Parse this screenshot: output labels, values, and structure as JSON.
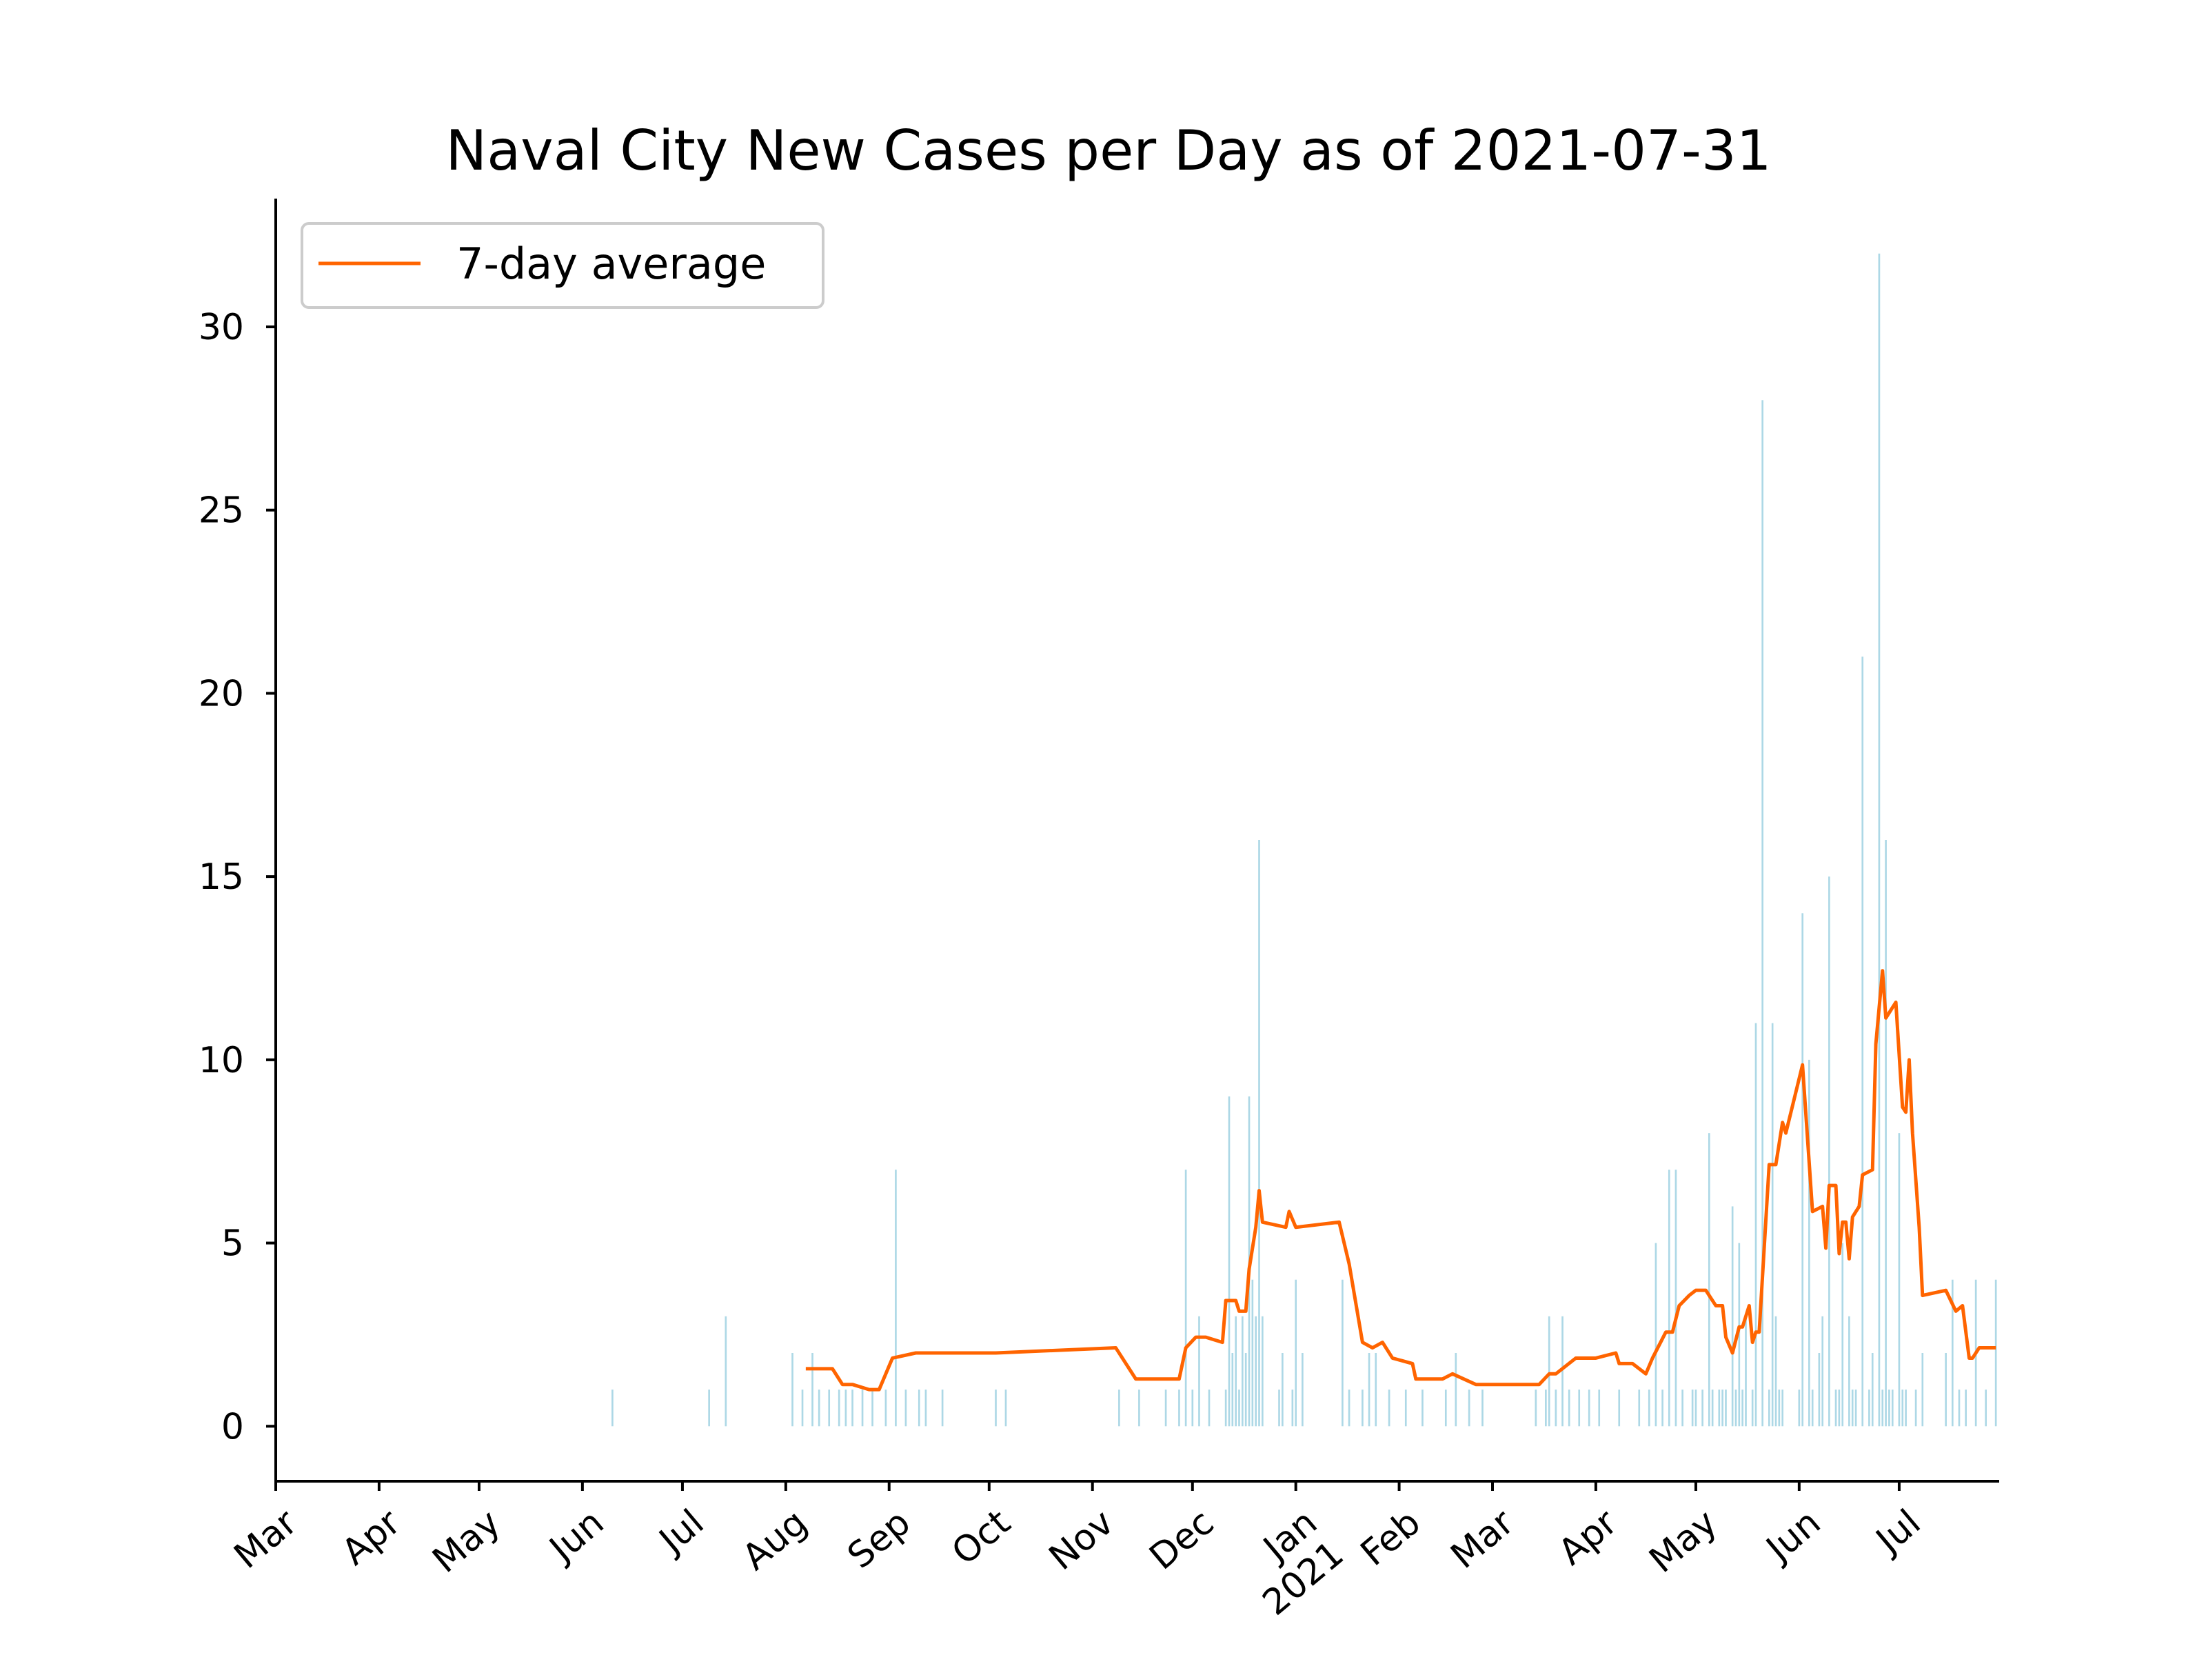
{
  "chart_data": {
    "type": "bar+line",
    "title": "Naval City New Cases per Day as of 2021-07-31",
    "xlabel": "",
    "ylabel": "",
    "ylim": [
      -1.5,
      33.5
    ],
    "xlim": [
      "2020-03-01",
      "2021-07-31"
    ],
    "y_ticks": [
      0,
      5,
      10,
      15,
      20,
      25,
      30
    ],
    "x_ticks": [
      {
        "date": "2020-03-01",
        "label": "Mar"
      },
      {
        "date": "2020-04-01",
        "label": "Apr"
      },
      {
        "date": "2020-05-01",
        "label": "May"
      },
      {
        "date": "2020-06-01",
        "label": "Jun"
      },
      {
        "date": "2020-07-01",
        "label": "Jul"
      },
      {
        "date": "2020-08-01",
        "label": "Aug"
      },
      {
        "date": "2020-09-01",
        "label": "Sep"
      },
      {
        "date": "2020-10-01",
        "label": "Oct"
      },
      {
        "date": "2020-11-01",
        "label": "Nov"
      },
      {
        "date": "2020-12-01",
        "label": "Dec"
      },
      {
        "date": "2021-01-01",
        "label": "Jan\n2021"
      },
      {
        "date": "2021-02-01",
        "label": "Feb"
      },
      {
        "date": "2021-03-01",
        "label": "Mar"
      },
      {
        "date": "2021-04-01",
        "label": "Apr"
      },
      {
        "date": "2021-05-01",
        "label": "May"
      },
      {
        "date": "2021-06-01",
        "label": "Jun"
      },
      {
        "date": "2021-07-01",
        "label": "Jul"
      }
    ],
    "legend": {
      "placement": "top-left",
      "entries": [
        {
          "label": "7-day average",
          "color": "#ff6400"
        }
      ]
    },
    "grid": false,
    "series": [
      {
        "kind": "bar",
        "color": "#add8e6",
        "points": [
          [
            "2020-06-10",
            1
          ],
          [
            "2020-07-09",
            1
          ],
          [
            "2020-07-14",
            3
          ],
          [
            "2020-08-03",
            2
          ],
          [
            "2020-08-06",
            1
          ],
          [
            "2020-08-09",
            2
          ],
          [
            "2020-08-11",
            1
          ],
          [
            "2020-08-14",
            1
          ],
          [
            "2020-08-17",
            1
          ],
          [
            "2020-08-19",
            1
          ],
          [
            "2020-08-21",
            1
          ],
          [
            "2020-08-24",
            1
          ],
          [
            "2020-08-27",
            1
          ],
          [
            "2020-08-31",
            1
          ],
          [
            "2020-09-03",
            7
          ],
          [
            "2020-09-06",
            1
          ],
          [
            "2020-09-10",
            1
          ],
          [
            "2020-09-12",
            1
          ],
          [
            "2020-09-17",
            1
          ],
          [
            "2020-10-03",
            1
          ],
          [
            "2020-10-06",
            1
          ],
          [
            "2020-11-09",
            1
          ],
          [
            "2020-11-15",
            1
          ],
          [
            "2020-11-23",
            1
          ],
          [
            "2020-11-27",
            1
          ],
          [
            "2020-11-29",
            7
          ],
          [
            "2020-12-01",
            1
          ],
          [
            "2020-12-03",
            3
          ],
          [
            "2020-12-06",
            1
          ],
          [
            "2020-12-11",
            1
          ],
          [
            "2020-12-12",
            9
          ],
          [
            "2020-12-13",
            2
          ],
          [
            "2020-12-14",
            3
          ],
          [
            "2020-12-15",
            1
          ],
          [
            "2020-12-16",
            3
          ],
          [
            "2020-12-17",
            2
          ],
          [
            "2020-12-18",
            9
          ],
          [
            "2020-12-19",
            4
          ],
          [
            "2020-12-20",
            3
          ],
          [
            "2020-12-21",
            16
          ],
          [
            "2020-12-22",
            3
          ],
          [
            "2020-12-27",
            1
          ],
          [
            "2020-12-28",
            2
          ],
          [
            "2020-12-31",
            1
          ],
          [
            "2021-01-01",
            4
          ],
          [
            "2021-01-03",
            2
          ],
          [
            "2021-01-15",
            4
          ],
          [
            "2021-01-17",
            1
          ],
          [
            "2021-01-21",
            1
          ],
          [
            "2021-01-23",
            2
          ],
          [
            "2021-01-25",
            2
          ],
          [
            "2021-01-29",
            1
          ],
          [
            "2021-02-03",
            1
          ],
          [
            "2021-02-08",
            1
          ],
          [
            "2021-02-15",
            1
          ],
          [
            "2021-02-18",
            2
          ],
          [
            "2021-02-22",
            1
          ],
          [
            "2021-02-26",
            1
          ],
          [
            "2021-03-14",
            1
          ],
          [
            "2021-03-17",
            1
          ],
          [
            "2021-03-18",
            3
          ],
          [
            "2021-03-20",
            1
          ],
          [
            "2021-03-22",
            3
          ],
          [
            "2021-03-24",
            1
          ],
          [
            "2021-03-27",
            1
          ],
          [
            "2021-03-30",
            1
          ],
          [
            "2021-04-02",
            1
          ],
          [
            "2021-04-08",
            1
          ],
          [
            "2021-04-14",
            1
          ],
          [
            "2021-04-17",
            1
          ],
          [
            "2021-04-19",
            5
          ],
          [
            "2021-04-21",
            1
          ],
          [
            "2021-04-23",
            7
          ],
          [
            "2021-04-25",
            7
          ],
          [
            "2021-04-27",
            1
          ],
          [
            "2021-04-30",
            1
          ],
          [
            "2021-05-01",
            1
          ],
          [
            "2021-05-03",
            1
          ],
          [
            "2021-05-05",
            8
          ],
          [
            "2021-05-06",
            1
          ],
          [
            "2021-05-08",
            1
          ],
          [
            "2021-05-09",
            1
          ],
          [
            "2021-05-10",
            1
          ],
          [
            "2021-05-12",
            6
          ],
          [
            "2021-05-13",
            1
          ],
          [
            "2021-05-14",
            5
          ],
          [
            "2021-05-15",
            1
          ],
          [
            "2021-05-16",
            3
          ],
          [
            "2021-05-18",
            1
          ],
          [
            "2021-05-19",
            11
          ],
          [
            "2021-05-21",
            28
          ],
          [
            "2021-05-23",
            1
          ],
          [
            "2021-05-24",
            11
          ],
          [
            "2021-05-25",
            3
          ],
          [
            "2021-05-26",
            1
          ],
          [
            "2021-05-27",
            1
          ],
          [
            "2021-06-01",
            1
          ],
          [
            "2021-06-02",
            14
          ],
          [
            "2021-06-04",
            10
          ],
          [
            "2021-06-05",
            1
          ],
          [
            "2021-06-07",
            2
          ],
          [
            "2021-06-08",
            3
          ],
          [
            "2021-06-10",
            15
          ],
          [
            "2021-06-12",
            1
          ],
          [
            "2021-06-13",
            1
          ],
          [
            "2021-06-14",
            5
          ],
          [
            "2021-06-16",
            3
          ],
          [
            "2021-06-17",
            1
          ],
          [
            "2021-06-18",
            1
          ],
          [
            "2021-06-20",
            21
          ],
          [
            "2021-06-22",
            1
          ],
          [
            "2021-06-23",
            2
          ],
          [
            "2021-06-25",
            32
          ],
          [
            "2021-06-26",
            1
          ],
          [
            "2021-06-27",
            16
          ],
          [
            "2021-06-28",
            1
          ],
          [
            "2021-06-29",
            1
          ],
          [
            "2021-07-01",
            8
          ],
          [
            "2021-07-02",
            1
          ],
          [
            "2021-07-03",
            1
          ],
          [
            "2021-07-06",
            1
          ],
          [
            "2021-07-08",
            2
          ],
          [
            "2021-07-15",
            2
          ],
          [
            "2021-07-17",
            4
          ],
          [
            "2021-07-19",
            1
          ],
          [
            "2021-07-21",
            1
          ],
          [
            "2021-07-24",
            4
          ],
          [
            "2021-07-27",
            1
          ],
          [
            "2021-07-30",
            4
          ]
        ]
      },
      {
        "kind": "line",
        "name": "7-day average",
        "color": "#ff6400",
        "points": [
          [
            "2020-08-07",
            1.57
          ],
          [
            "2020-08-15",
            1.57
          ],
          [
            "2020-08-18",
            1.14
          ],
          [
            "2020-08-21",
            1.14
          ],
          [
            "2020-08-26",
            1.0
          ],
          [
            "2020-08-29",
            1.0
          ],
          [
            "2020-09-02",
            1.86
          ],
          [
            "2020-09-09",
            2.0
          ],
          [
            "2020-10-03",
            2.0
          ],
          [
            "2020-11-08",
            2.14
          ],
          [
            "2020-11-14",
            1.29
          ],
          [
            "2020-11-27",
            1.29
          ],
          [
            "2020-11-29",
            2.14
          ],
          [
            "2020-12-02",
            2.43
          ],
          [
            "2020-12-05",
            2.43
          ],
          [
            "2020-12-10",
            2.29
          ],
          [
            "2020-12-11",
            3.43
          ],
          [
            "2020-12-14",
            3.43
          ],
          [
            "2020-12-15",
            3.14
          ],
          [
            "2020-12-17",
            3.14
          ],
          [
            "2020-12-18",
            4.29
          ],
          [
            "2020-12-20",
            5.43
          ],
          [
            "2020-12-21",
            6.43
          ],
          [
            "2020-12-22",
            5.57
          ],
          [
            "2020-12-29",
            5.43
          ],
          [
            "2020-12-30",
            5.86
          ],
          [
            "2021-01-01",
            5.43
          ],
          [
            "2021-01-14",
            5.57
          ],
          [
            "2021-01-17",
            4.43
          ],
          [
            "2021-01-21",
            2.29
          ],
          [
            "2021-01-24",
            2.14
          ],
          [
            "2021-01-27",
            2.29
          ],
          [
            "2021-01-30",
            1.86
          ],
          [
            "2021-02-05",
            1.71
          ],
          [
            "2021-02-06",
            1.29
          ],
          [
            "2021-02-14",
            1.29
          ],
          [
            "2021-02-17",
            1.43
          ],
          [
            "2021-02-24",
            1.14
          ],
          [
            "2021-03-15",
            1.14
          ],
          [
            "2021-03-18",
            1.43
          ],
          [
            "2021-03-20",
            1.43
          ],
          [
            "2021-03-26",
            1.86
          ],
          [
            "2021-04-01",
            1.86
          ],
          [
            "2021-04-07",
            2.0
          ],
          [
            "2021-04-08",
            1.71
          ],
          [
            "2021-04-12",
            1.71
          ],
          [
            "2021-04-16",
            1.43
          ],
          [
            "2021-04-18",
            1.86
          ],
          [
            "2021-04-22",
            2.57
          ],
          [
            "2021-04-24",
            2.57
          ],
          [
            "2021-04-26",
            3.29
          ],
          [
            "2021-04-29",
            3.57
          ],
          [
            "2021-05-01",
            3.71
          ],
          [
            "2021-05-04",
            3.71
          ],
          [
            "2021-05-07",
            3.29
          ],
          [
            "2021-05-09",
            3.29
          ],
          [
            "2021-05-10",
            2.43
          ],
          [
            "2021-05-12",
            2.0
          ],
          [
            "2021-05-14",
            2.71
          ],
          [
            "2021-05-15",
            2.71
          ],
          [
            "2021-05-17",
            3.29
          ],
          [
            "2021-05-18",
            2.29
          ],
          [
            "2021-05-19",
            2.57
          ],
          [
            "2021-05-20",
            2.57
          ],
          [
            "2021-05-23",
            7.14
          ],
          [
            "2021-05-25",
            7.14
          ],
          [
            "2021-05-27",
            8.29
          ],
          [
            "2021-05-28",
            8.0
          ],
          [
            "2021-06-02",
            9.86
          ],
          [
            "2021-06-05",
            5.86
          ],
          [
            "2021-06-08",
            6.0
          ],
          [
            "2021-06-09",
            4.86
          ],
          [
            "2021-06-10",
            6.57
          ],
          [
            "2021-06-12",
            6.57
          ],
          [
            "2021-06-13",
            4.71
          ],
          [
            "2021-06-14",
            5.57
          ],
          [
            "2021-06-15",
            5.57
          ],
          [
            "2021-06-16",
            4.57
          ],
          [
            "2021-06-17",
            5.71
          ],
          [
            "2021-06-19",
            6.0
          ],
          [
            "2021-06-20",
            6.86
          ],
          [
            "2021-06-23",
            7.0
          ],
          [
            "2021-06-24",
            10.43
          ],
          [
            "2021-06-26",
            12.43
          ],
          [
            "2021-06-27",
            11.14
          ],
          [
            "2021-06-30",
            11.57
          ],
          [
            "2021-07-02",
            8.71
          ],
          [
            "2021-07-03",
            8.57
          ],
          [
            "2021-07-04",
            10.0
          ],
          [
            "2021-07-05",
            8.0
          ],
          [
            "2021-07-07",
            5.43
          ],
          [
            "2021-07-08",
            3.57
          ],
          [
            "2021-07-15",
            3.71
          ],
          [
            "2021-07-18",
            3.14
          ],
          [
            "2021-07-20",
            3.29
          ],
          [
            "2021-07-22",
            1.86
          ],
          [
            "2021-07-23",
            1.86
          ],
          [
            "2021-07-25",
            2.14
          ],
          [
            "2021-07-30",
            2.14
          ]
        ]
      }
    ]
  }
}
